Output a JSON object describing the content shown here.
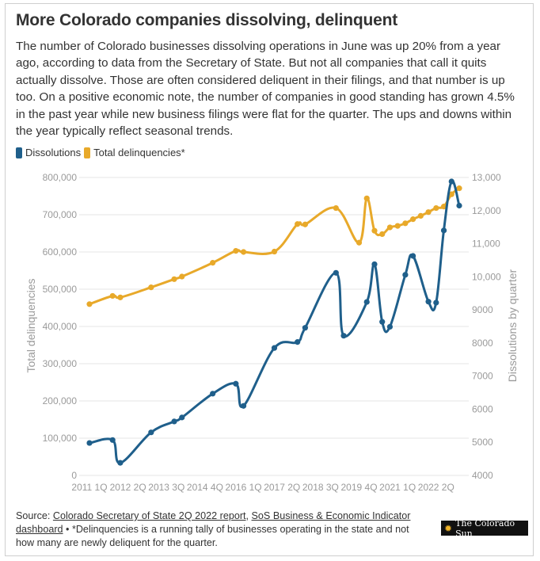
{
  "header": {
    "title": "More Colorado companies dissolving, delinquent",
    "subtitle": "The number of Colorado businesses dissolving operations in June was up 20% from a year ago, according to data from the Secretary of State. But not all companies that call it quits actually dissolve. Those are often considered deliquent in their filings, and that number is up too. On a positive economic note, the number of companies in good standing has grown 4.5% in the past year while new business filings were flat for the quarter. The ups and downs within the year typically reflect seasonal trends."
  },
  "legend": {
    "items": [
      {
        "label": "Dissolutions",
        "color": "#1f5f8b"
      },
      {
        "label": "Total delinquencies*",
        "color": "#e8a92a"
      }
    ]
  },
  "footer": {
    "source_prefix": "Source: ",
    "link1": "Colorado Secretary of State 2Q 2022 report",
    "sep": ", ",
    "link2": "SoS Business & Economic Indicator dashboard",
    "note": " • *Delinquencies is a running tally of businesses operating in the state and not how many are newly deliquent for the quarter.",
    "logo_text": "The Colorado Sun"
  },
  "chart_data": {
    "type": "line",
    "x_ticks": [
      "2011 1Q",
      "2012 2Q",
      "2013 3Q",
      "2014 4Q",
      "2016 1Q",
      "2017 2Q",
      "2018 3Q",
      "2019 4Q",
      "2021 1Q",
      "2022 2Q"
    ],
    "x_tick_index": [
      0,
      5,
      10,
      15,
      20,
      25,
      30,
      35,
      40,
      45
    ],
    "yleft": {
      "label": "Total delinquencies",
      "min": 0,
      "max": 800000,
      "ticks": [
        "0",
        "100,000",
        "200,000",
        "300,000",
        "400,000",
        "500,000",
        "600,000",
        "700,000",
        "800,000"
      ]
    },
    "yright": {
      "label": "Dissolutions by quarter",
      "min": 4000,
      "max": 13000,
      "ticks": [
        "4000",
        "5000",
        "6000",
        "7000",
        "8000",
        "9000",
        "10,000",
        "11,000",
        "12,000",
        "13,000"
      ]
    },
    "grid": true,
    "series": [
      {
        "name": "Dissolutions",
        "axis": "right",
        "color": "#1f5f8b",
        "points": [
          [
            0,
            4980
          ],
          [
            3,
            5070
          ],
          [
            4,
            4380
          ],
          [
            8,
            5300
          ],
          [
            11,
            5630
          ],
          [
            12,
            5750
          ],
          [
            16,
            6470
          ],
          [
            19,
            6770
          ],
          [
            20,
            6100
          ],
          [
            24,
            7850
          ],
          [
            27,
            8030
          ],
          [
            28,
            8460
          ],
          [
            32,
            10120
          ],
          [
            33,
            8220
          ],
          [
            36,
            9240
          ],
          [
            37,
            10380
          ],
          [
            38,
            8640
          ],
          [
            39,
            8490
          ],
          [
            41,
            10060
          ],
          [
            42,
            10630
          ],
          [
            44,
            9250
          ],
          [
            45,
            9220
          ],
          [
            46,
            11400
          ],
          [
            47,
            12880
          ],
          [
            48,
            12150
          ]
        ]
      },
      {
        "name": "Total delinquencies*",
        "axis": "left",
        "color": "#e8a92a",
        "points": [
          [
            0,
            460000
          ],
          [
            3,
            482000
          ],
          [
            4,
            478000
          ],
          [
            8,
            505000
          ],
          [
            11,
            527000
          ],
          [
            12,
            534000
          ],
          [
            16,
            571000
          ],
          [
            19,
            603000
          ],
          [
            20,
            600000
          ],
          [
            24,
            601000
          ],
          [
            27,
            675000
          ],
          [
            28,
            674000
          ],
          [
            32,
            718000
          ],
          [
            35,
            625000
          ],
          [
            36,
            744000
          ],
          [
            37,
            657000
          ],
          [
            38,
            648000
          ],
          [
            39,
            666000
          ],
          [
            40,
            670000
          ],
          [
            41,
            677000
          ],
          [
            42,
            688000
          ],
          [
            43,
            697000
          ],
          [
            44,
            707000
          ],
          [
            45,
            718000
          ],
          [
            46,
            722000
          ],
          [
            47,
            755000
          ],
          [
            48,
            771000
          ]
        ]
      }
    ]
  }
}
